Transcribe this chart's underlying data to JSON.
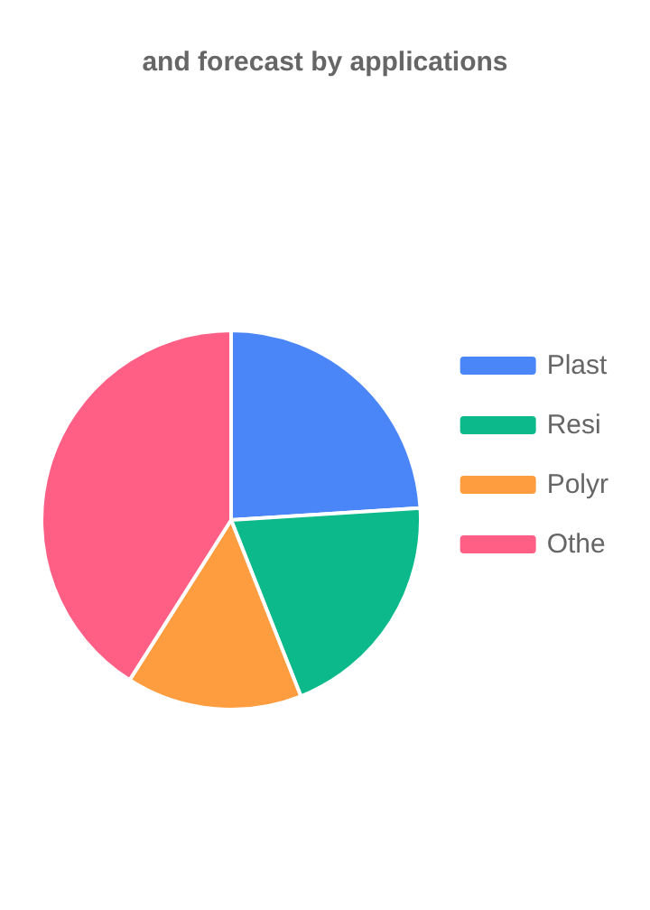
{
  "chart_data": {
    "type": "pie",
    "title": "and forecast by applications",
    "categories": [
      "Plast",
      "Resi",
      "Polyr",
      "Othe"
    ],
    "values": [
      24,
      20,
      15,
      41
    ],
    "colors": [
      "#4a86f7",
      "#0bb98a",
      "#fe9d40",
      "#ff5f85"
    ],
    "legend": "right"
  }
}
